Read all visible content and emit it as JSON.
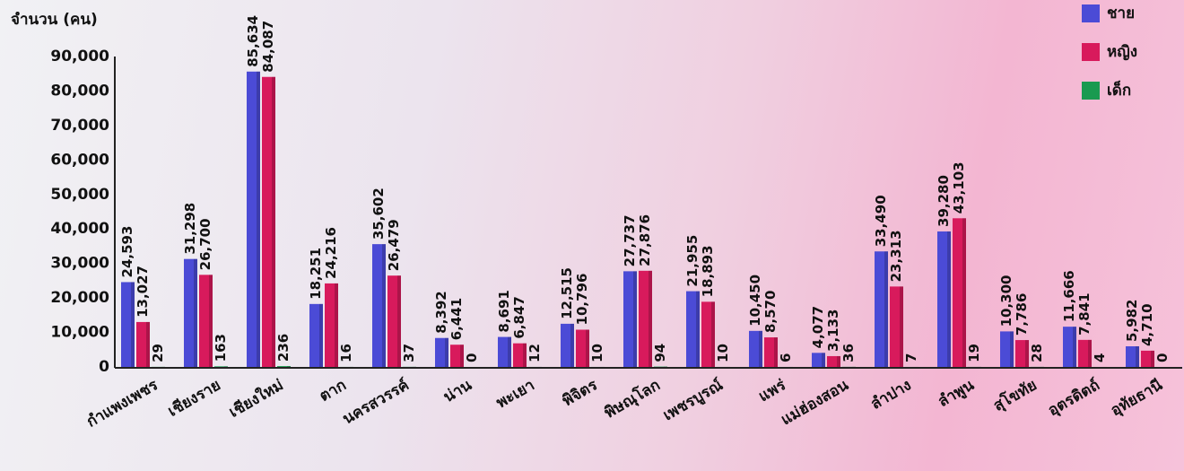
{
  "chart_data": {
    "type": "bar",
    "y_axis_label": "จำนวน (คน)",
    "categories": [
      "กำแพงเพชร",
      "เชียงราย",
      "เชียงใหม่",
      "ตาก",
      "นครสวรรค์",
      "น่าน",
      "พะเยา",
      "พิจิตร",
      "พิษณุโลก",
      "เพชรบูรณ์",
      "แพร่",
      "แม่ฮ่องสอน",
      "ลำปาง",
      "ลำพูน",
      "สุโขทัย",
      "อุตรดิตถ์",
      "อุทัยธานี"
    ],
    "series": [
      {
        "name": "ชาย",
        "color": "#4b4bd6",
        "values": [
          24593,
          31298,
          85634,
          18251,
          35602,
          8392,
          8691,
          12515,
          27737,
          21955,
          10450,
          4077,
          33490,
          39280,
          10300,
          11666,
          5982
        ],
        "value_labels": [
          "24,593",
          "31,298",
          "85,634",
          "18,251",
          "35,602",
          "8,392",
          "8,691",
          "12,515",
          "27,737",
          "21,955",
          "10,450",
          "4,077",
          "33,490",
          "39,280",
          "10,300",
          "11,666",
          "5,982"
        ]
      },
      {
        "name": "หญิง",
        "color": "#d81a5c",
        "values": [
          13027,
          26700,
          84087,
          24216,
          26479,
          6441,
          6847,
          10796,
          27876,
          18893,
          8570,
          3133,
          23313,
          43103,
          7786,
          7841,
          4710
        ],
        "value_labels": [
          "13,027",
          "26,700",
          "84,087",
          "24,216",
          "26,479",
          "6,441",
          "6,847",
          "10,796",
          "27,876",
          "18,893",
          "8,570",
          "3,133",
          "23,313",
          "43,103",
          "7,786",
          "7,841",
          "4,710"
        ]
      },
      {
        "name": "เด็ก",
        "color": "#1a9a50",
        "values": [
          29,
          163,
          236,
          16,
          37,
          0,
          12,
          10,
          94,
          10,
          6,
          36,
          7,
          19,
          28,
          4,
          0
        ],
        "value_labels": [
          "29",
          "163",
          "236",
          "16",
          "37",
          "0",
          "12",
          "10",
          "94",
          "10",
          "6",
          "36",
          "7",
          "19",
          "28",
          "4",
          "0"
        ]
      }
    ],
    "ylim": [
      0,
      90000
    ],
    "yticks": [
      0,
      {
        "value": 10000,
        "label": "10,000"
      },
      {
        "value": 20000,
        "label": "20,000"
      },
      {
        "value": 30000,
        "label": "30,000"
      },
      {
        "value": 40000,
        "label": "40,000"
      },
      {
        "value": 50000,
        "label": "50,000"
      },
      {
        "value": 60000,
        "label": "60,000"
      },
      {
        "value": 70000,
        "label": "70,000"
      },
      {
        "value": 80000,
        "label": "80,000"
      },
      {
        "value": 90000,
        "label": "90,000"
      }
    ],
    "grid": false,
    "legend": "top-right"
  }
}
